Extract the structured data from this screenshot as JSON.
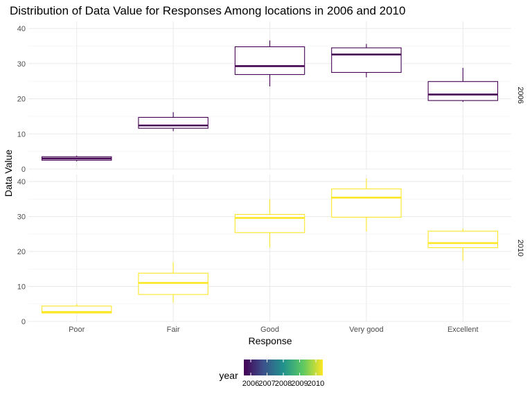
{
  "chart_data": {
    "type": "boxplot",
    "title": "Distribution of Data Value for Responses Among locations in 2006 and 2010",
    "xlabel": "Response",
    "ylabel": "Data Value",
    "categories": [
      "Poor",
      "Fair",
      "Good",
      "Very good",
      "Excellent"
    ],
    "ylim": [
      0,
      42
    ],
    "yticks": [
      "0",
      "10",
      "20",
      "30",
      "40"
    ],
    "grid": true,
    "facets": [
      {
        "label": "2006",
        "year": 2006,
        "color": "#440154",
        "boxes": [
          {
            "category": "Poor",
            "min": 2.2,
            "q1": 2.5,
            "median": 3.0,
            "q3": 3.5,
            "max": 3.8
          },
          {
            "category": "Fair",
            "min": 10.8,
            "q1": 11.6,
            "median": 12.4,
            "q3": 14.7,
            "max": 16.2
          },
          {
            "category": "Good",
            "min": 23.5,
            "q1": 26.9,
            "median": 29.3,
            "q3": 34.8,
            "max": 36.6
          },
          {
            "category": "Very good",
            "min": 26.1,
            "q1": 27.5,
            "median": 32.6,
            "q3": 34.5,
            "max": 35.6
          },
          {
            "category": "Excellent",
            "min": 19.1,
            "q1": 19.5,
            "median": 21.2,
            "q3": 24.9,
            "max": 28.8
          }
        ]
      },
      {
        "label": "2010",
        "year": 2010,
        "color": "#fde725",
        "boxes": [
          {
            "category": "Poor",
            "min": 2.3,
            "q1": 2.4,
            "median": 2.7,
            "q3": 4.4,
            "max": 5.0
          },
          {
            "category": "Fair",
            "min": 5.4,
            "q1": 7.7,
            "median": 11.0,
            "q3": 13.8,
            "max": 16.9
          },
          {
            "category": "Good",
            "min": 21.1,
            "q1": 25.4,
            "median": 29.6,
            "q3": 30.6,
            "max": 35.0
          },
          {
            "category": "Very good",
            "min": 25.7,
            "q1": 29.8,
            "median": 35.4,
            "q3": 37.9,
            "max": 40.9
          },
          {
            "category": "Excellent",
            "min": 17.3,
            "q1": 21.1,
            "median": 22.4,
            "q3": 25.8,
            "max": 26.6
          }
        ]
      }
    ],
    "legend": {
      "title": "year",
      "position": "bottom",
      "labels": [
        "2006",
        "2007",
        "2008",
        "2009",
        "2010"
      ],
      "colors": [
        "#440154",
        "#3b528b",
        "#21918c",
        "#5ec962",
        "#fde725"
      ]
    }
  }
}
